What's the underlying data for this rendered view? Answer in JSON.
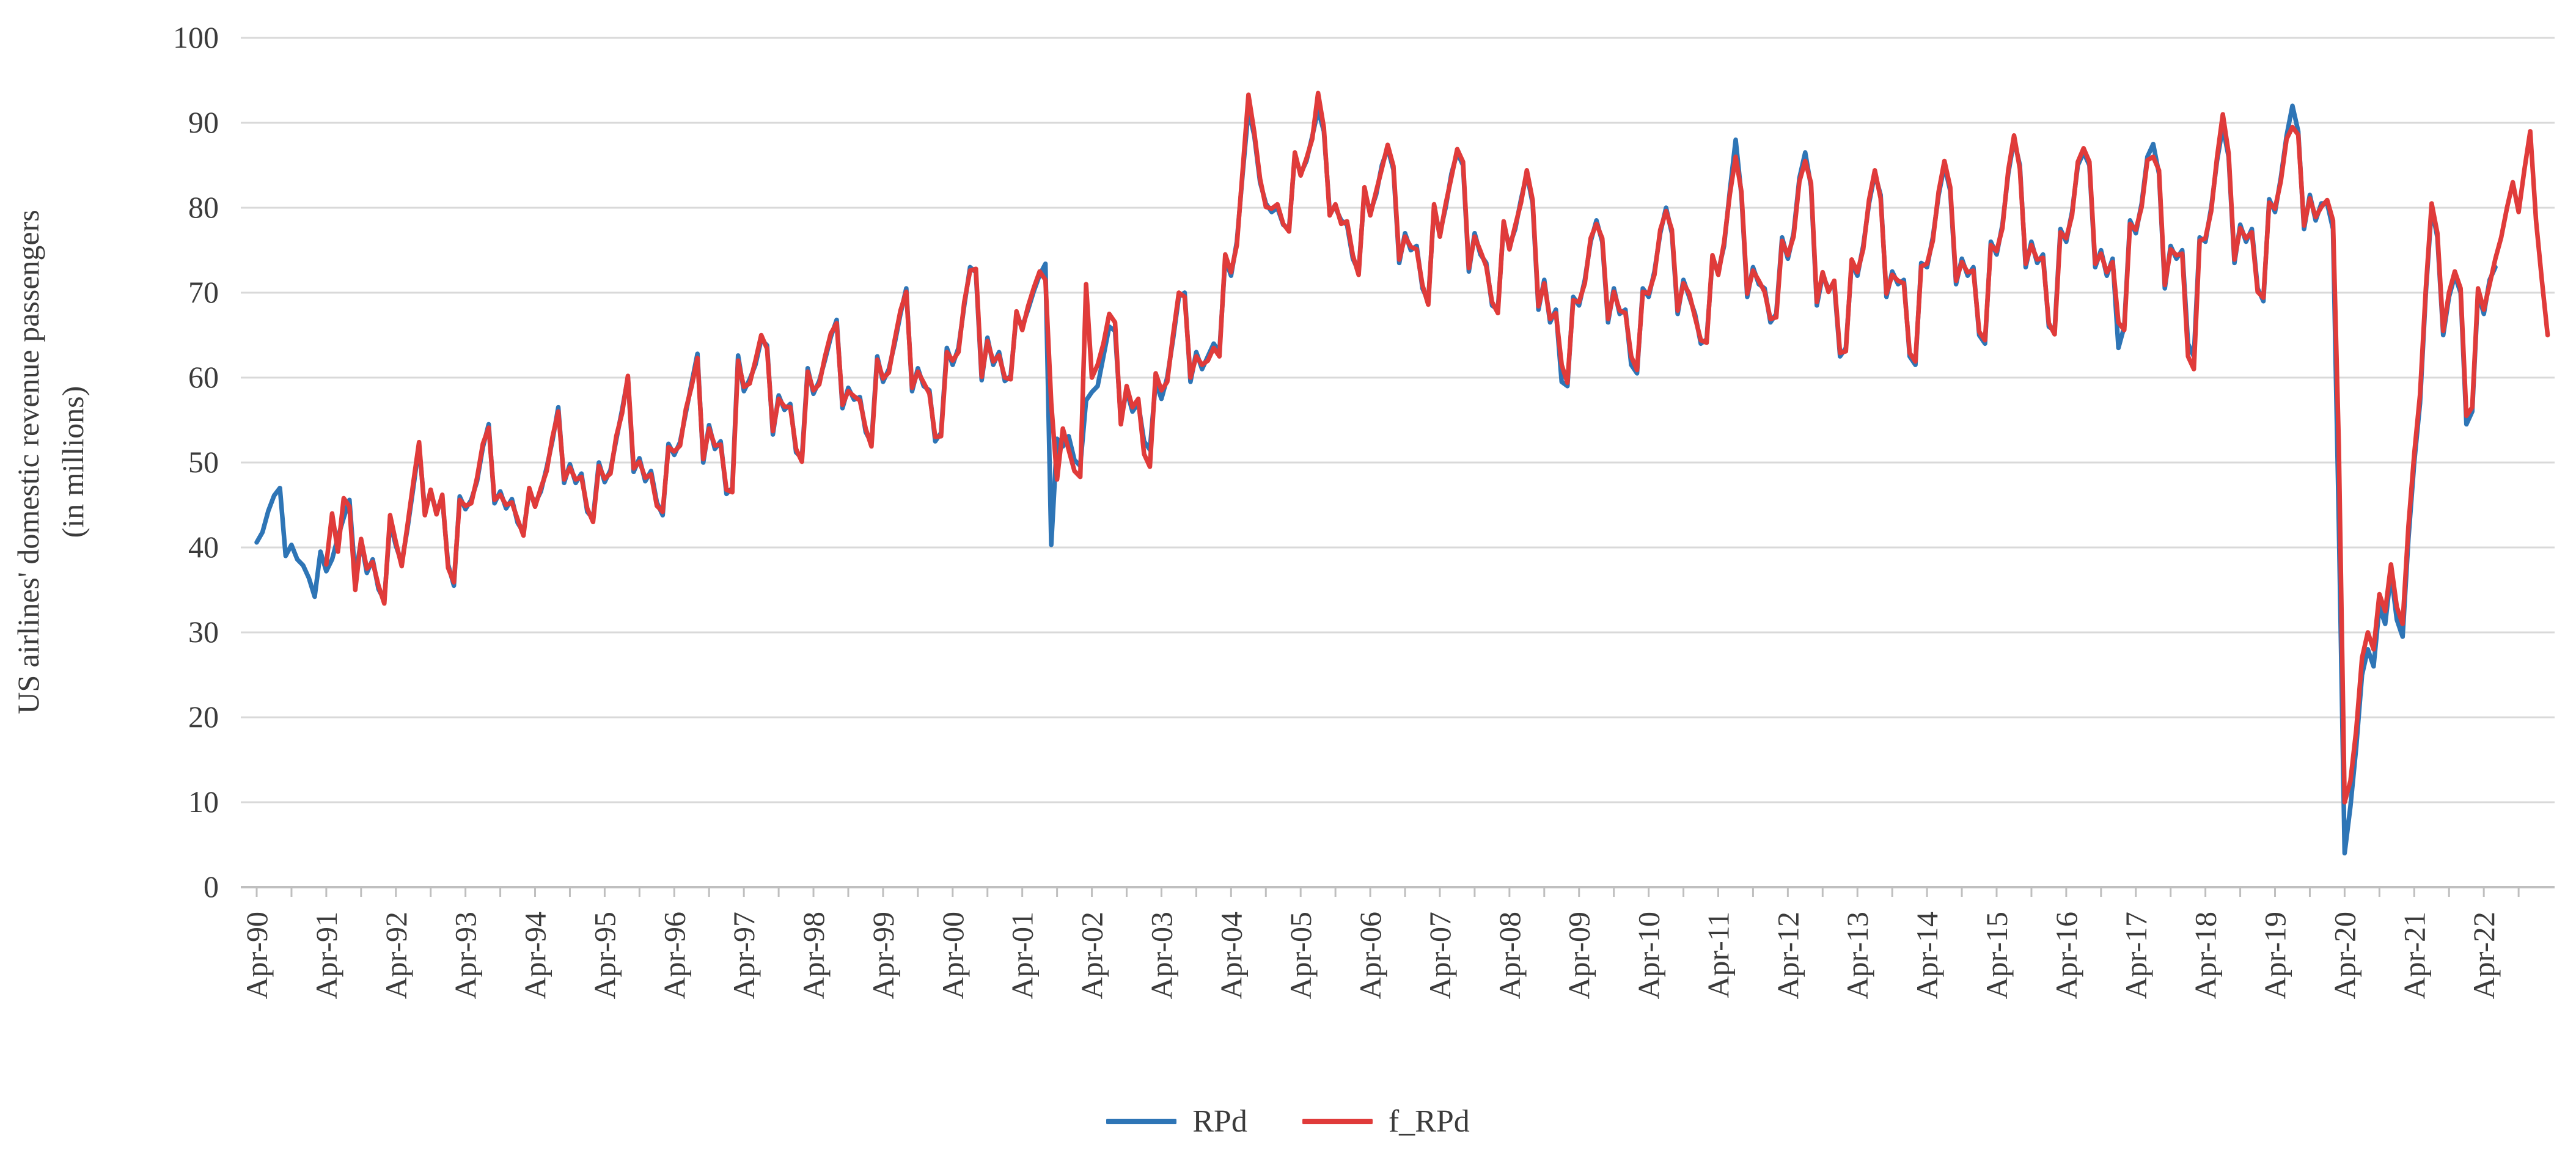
{
  "chart_data": {
    "type": "line",
    "title": "",
    "ylabel_line1": "US airlines' domestic revenue passengers",
    "ylabel_line2": "(in millions)",
    "xlabel": "",
    "ylim": [
      0,
      100
    ],
    "yticks": [
      0,
      10,
      20,
      30,
      40,
      50,
      60,
      70,
      80,
      90,
      100
    ],
    "grid": "horizontal",
    "legend_position": "bottom-center",
    "x_start_month": "Apr-1990",
    "x_months_total": 396,
    "xtick_every_months": 12,
    "xtick_labels": [
      "Apr-90",
      "Apr-91",
      "Apr-92",
      "Apr-93",
      "Apr-94",
      "Apr-95",
      "Apr-96",
      "Apr-97",
      "Apr-98",
      "Apr-99",
      "Apr-00",
      "Apr-01",
      "Apr-02",
      "Apr-03",
      "Apr-04",
      "Apr-05",
      "Apr-06",
      "Apr-07",
      "Apr-08",
      "Apr-09",
      "Apr-10",
      "Apr-11",
      "Apr-12",
      "Apr-13",
      "Apr-14",
      "Apr-15",
      "Apr-16",
      "Apr-17",
      "Apr-18",
      "Apr-19",
      "Apr-20",
      "Apr-21",
      "Apr-22"
    ],
    "series": [
      {
        "name": "RPd",
        "color": "#2E75B6",
        "start_index": 0,
        "values": [
          40.6,
          41.8,
          44.3,
          46.1,
          47.0,
          39.0,
          40.3,
          38.6,
          37.9,
          36.4,
          34.2,
          39.5,
          37.2,
          38.6,
          41.2,
          43.5,
          45.6,
          36.5,
          40.8,
          37.0,
          38.6,
          35.1,
          33.8,
          43.0,
          40.2,
          38.2,
          42.2,
          47.0,
          52.0,
          44.3,
          46.4,
          44.3,
          45.8,
          38.0,
          35.5,
          46.0,
          44.5,
          45.6,
          47.8,
          51.8,
          54.5,
          45.2,
          46.6,
          44.6,
          45.7,
          42.9,
          41.8,
          46.6,
          45.2,
          46.6,
          49.4,
          52.6,
          56.5,
          47.6,
          49.8,
          47.6,
          48.7,
          44.2,
          43.4,
          50.0,
          47.7,
          49.1,
          52.7,
          56.2,
          60.0,
          48.9,
          50.5,
          47.8,
          49.0,
          45.3,
          43.8,
          52.2,
          50.9,
          52.4,
          55.9,
          59.4,
          62.8,
          50.0,
          54.4,
          51.6,
          52.5,
          46.3,
          47.0,
          62.6,
          58.4,
          59.8,
          61.5,
          64.5,
          63.8,
          53.3,
          57.9,
          56.2,
          56.9,
          51.2,
          50.5,
          61.1,
          58.1,
          59.6,
          62.1,
          64.8,
          66.8,
          56.4,
          58.8,
          57.4,
          57.7,
          53.6,
          52.3,
          62.5,
          59.5,
          61.0,
          64.0,
          67.5,
          70.5,
          58.4,
          61.1,
          59.0,
          58.5,
          52.5,
          53.5,
          63.5,
          61.5,
          63.5,
          68.5,
          73.0,
          72.4,
          59.7,
          64.7,
          61.5,
          63.0,
          59.6,
          60.2,
          67.4,
          66.0,
          68.0,
          70.2,
          72.1,
          73.4,
          40.3,
          52.8,
          51.9,
          53.1,
          50.3,
          49.6,
          57.3,
          58.3,
          59.0,
          62.5,
          66.0,
          65.5,
          55.0,
          58.5,
          56.0,
          57.0,
          52.5,
          51.5,
          59.5,
          57.5,
          60.0,
          64.5,
          69.5,
          70.0,
          59.5,
          63.0,
          61.0,
          62.5,
          64.0,
          63.0,
          74.0,
          72.0,
          76.0,
          84.0,
          91.5,
          88.5,
          83.0,
          80.5,
          79.5,
          80.0,
          78.0,
          77.5,
          86.2,
          84.0,
          85.5,
          88.4,
          91.5,
          89.0,
          79.5,
          80.0,
          78.5,
          78.0,
          74.0,
          72.5,
          82.0,
          79.5,
          81.5,
          85.0,
          87.0,
          84.5,
          73.5,
          77.0,
          75.0,
          75.5,
          70.5,
          69.0,
          80.0,
          77.0,
          80.0,
          84.0,
          86.5,
          85.0,
          72.5,
          77.0,
          74.5,
          73.5,
          68.5,
          68.0,
          78.0,
          75.5,
          77.5,
          81.0,
          84.0,
          80.5,
          68.0,
          71.5,
          66.5,
          68.0,
          59.5,
          59.0,
          69.5,
          68.5,
          71.5,
          76.0,
          78.5,
          76.0,
          66.5,
          70.5,
          67.5,
          68.0,
          61.5,
          60.5,
          70.5,
          69.5,
          72.5,
          77.0,
          80.0,
          77.0,
          67.5,
          71.5,
          69.5,
          67.5,
          64.0,
          64.5,
          74.0,
          72.5,
          75.5,
          82.0,
          88.0,
          81.5,
          69.5,
          73.0,
          71.0,
          70.5,
          66.5,
          67.5,
          76.5,
          74.0,
          77.0,
          83.5,
          86.5,
          82.5,
          68.5,
          72.0,
          70.5,
          71.0,
          62.5,
          63.5,
          73.5,
          72.0,
          75.5,
          80.5,
          84.0,
          81.5,
          69.5,
          72.5,
          71.0,
          71.5,
          62.5,
          61.5,
          73.5,
          73.0,
          76.5,
          81.5,
          85.0,
          82.0,
          71.0,
          74.0,
          72.0,
          73.0,
          65.0,
          64.0,
          76.0,
          74.5,
          78.0,
          84.0,
          88.0,
          85.0,
          73.0,
          76.0,
          73.5,
          74.5,
          66.0,
          65.5,
          77.5,
          76.0,
          79.5,
          85.0,
          86.5,
          85.0,
          73.0,
          75.0,
          72.0,
          74.0,
          63.5,
          66.0,
          78.5,
          77.0,
          80.5,
          86.0,
          87.5,
          84.0,
          70.5,
          75.5,
          74.0,
          75.0,
          64.0,
          62.5,
          76.5,
          76.0,
          80.0,
          85.5,
          89.5,
          86.0,
          73.5,
          78.0,
          76.0,
          77.5,
          70.5,
          69.0,
          81.0,
          79.5,
          83.5,
          88.5,
          92.0,
          89.0,
          77.5,
          81.5,
          78.5,
          80.5,
          80.5,
          77.5,
          43.0,
          4.0,
          9.5,
          16.5,
          25.0,
          28.0,
          26.0,
          33.0,
          31.0,
          37.0,
          31.5,
          29.5,
          41.0,
          50.0,
          57.0,
          70.0,
          80.0,
          76.5,
          65.0,
          69.5,
          72.0,
          70.0,
          54.5,
          56.0,
          70.0,
          67.5,
          71.5,
          73.0
        ]
      },
      {
        "name": "f_RPd",
        "color": "#E03B3A",
        "start_index": 12,
        "values": [
          38.0,
          44.0,
          39.5,
          45.8,
          44.8,
          35.0,
          41.0,
          37.5,
          38.3,
          35.5,
          33.4,
          43.8,
          40.6,
          37.8,
          42.6,
          47.6,
          52.4,
          43.8,
          46.8,
          43.9,
          46.2,
          37.6,
          35.9,
          45.6,
          44.9,
          45.2,
          48.2,
          52.2,
          54.1,
          45.6,
          46.2,
          45.0,
          45.3,
          43.3,
          41.4,
          47.0,
          44.8,
          47.0,
          49.0,
          53.0,
          56.0,
          48.0,
          49.4,
          48.0,
          48.3,
          44.6,
          43.0,
          49.6,
          48.1,
          48.7,
          53.1,
          55.8,
          60.2,
          49.3,
          50.1,
          48.2,
          48.6,
          44.9,
          44.2,
          51.8,
          51.3,
          52.0,
          56.3,
          59.0,
          62.3,
          50.4,
          54.0,
          52.0,
          52.1,
          46.8,
          46.5,
          62.0,
          58.9,
          59.3,
          62.0,
          65.0,
          63.4,
          53.7,
          57.5,
          56.6,
          56.5,
          51.6,
          50.1,
          60.7,
          58.5,
          59.2,
          62.5,
          65.2,
          66.4,
          56.8,
          58.4,
          57.8,
          57.3,
          54.0,
          51.9,
          62.1,
          59.9,
          60.6,
          64.4,
          67.9,
          70.1,
          58.8,
          60.7,
          59.4,
          58.1,
          53.0,
          53.1,
          63.0,
          62.0,
          63.0,
          68.9,
          72.6,
          72.8,
          60.1,
          64.3,
          61.9,
          62.6,
          60.0,
          59.8,
          67.8,
          65.6,
          68.4,
          70.6,
          72.5,
          71.5,
          57.0,
          48.0,
          54.0,
          51.5,
          49.0,
          48.3,
          71.0,
          60.0,
          61.5,
          64.0,
          67.5,
          66.5,
          54.5,
          59.0,
          56.5,
          57.5,
          51.0,
          49.5,
          60.5,
          58.5,
          59.5,
          65.0,
          70.0,
          69.5,
          60.0,
          62.5,
          61.5,
          62.0,
          63.5,
          62.5,
          74.5,
          72.4,
          75.6,
          84.4,
          93.3,
          88.9,
          83.4,
          80.1,
          79.9,
          80.4,
          78.1,
          77.2,
          86.5,
          83.8,
          85.8,
          88.1,
          93.5,
          89.4,
          79.1,
          80.4,
          78.1,
          78.4,
          74.4,
          72.1,
          82.4,
          79.1,
          81.9,
          84.6,
          87.4,
          84.9,
          73.9,
          76.6,
          75.4,
          75.1,
          70.9,
          68.6,
          80.4,
          76.6,
          80.4,
          83.6,
          86.9,
          85.4,
          72.9,
          76.6,
          74.9,
          73.1,
          68.9,
          67.6,
          78.4,
          75.1,
          77.9,
          80.6,
          84.4,
          80.9,
          68.4,
          71.1,
          66.9,
          67.6,
          61.5,
          59.4,
          69.1,
          68.9,
          71.1,
          76.4,
          78.1,
          76.4,
          66.9,
          70.1,
          67.9,
          67.6,
          62.5,
          60.9,
          70.1,
          69.9,
          72.1,
          77.4,
          79.6,
          77.4,
          67.9,
          71.1,
          69.9,
          67.1,
          64.4,
          64.1,
          74.4,
          72.1,
          75.9,
          81.6,
          86.0,
          81.9,
          69.9,
          72.6,
          71.4,
          70.1,
          66.9,
          67.1,
          76.1,
          74.4,
          76.6,
          83.1,
          85.5,
          82.9,
          68.9,
          72.4,
          70.1,
          71.4,
          62.9,
          63.1,
          73.9,
          72.4,
          75.1,
          80.9,
          84.4,
          81.1,
          69.9,
          72.1,
          71.4,
          71.1,
          62.9,
          61.9,
          73.1,
          73.4,
          76.1,
          81.9,
          85.5,
          82.4,
          71.4,
          73.6,
          72.4,
          72.6,
          65.4,
          64.4,
          75.6,
          74.9,
          77.6,
          84.4,
          88.5,
          84.6,
          73.4,
          75.6,
          73.9,
          74.1,
          66.4,
          65.1,
          77.1,
          76.4,
          79.1,
          85.4,
          87.0,
          85.4,
          73.4,
          74.6,
          72.4,
          73.6,
          66.5,
          65.6,
          78.1,
          77.4,
          80.1,
          85.6,
          86.0,
          84.4,
          70.9,
          75.1,
          74.4,
          74.6,
          62.5,
          61.0,
          76.1,
          76.4,
          79.6,
          85.9,
          91.0,
          86.4,
          73.9,
          77.6,
          76.4,
          77.1,
          70.1,
          69.4,
          80.6,
          79.9,
          83.1,
          88.1,
          89.5,
          88.6,
          77.9,
          81.1,
          78.9,
          80.1,
          80.9,
          78.5,
          52.0,
          10.0,
          12.5,
          18.5,
          27.0,
          30.0,
          28.0,
          34.5,
          32.5,
          38.0,
          33.0,
          31.0,
          42.5,
          51.0,
          58.0,
          70.5,
          80.5,
          77.0,
          65.5,
          70.0,
          72.5,
          70.5,
          55.5,
          56.5,
          70.5,
          68.0,
          71.0,
          74.0,
          76.5,
          80.0,
          83.0,
          79.5,
          84.5,
          89.0,
          78.5,
          71.5,
          65.0
        ]
      }
    ]
  },
  "legend": {
    "rpd_label": "RPd",
    "f_rpd_label": "f_RPd"
  },
  "axis": {
    "ylabel_line1": "US airlines' domestic revenue passengers",
    "ylabel_line2": "(in millions)"
  },
  "colors": {
    "rpd": "#2E75B6",
    "f_rpd": "#E03B3A",
    "gridline": "#D9D9D9",
    "axis_line": "#BFBFBF",
    "tick_text": "#3b3b3b",
    "background": "#FFFFFF"
  }
}
